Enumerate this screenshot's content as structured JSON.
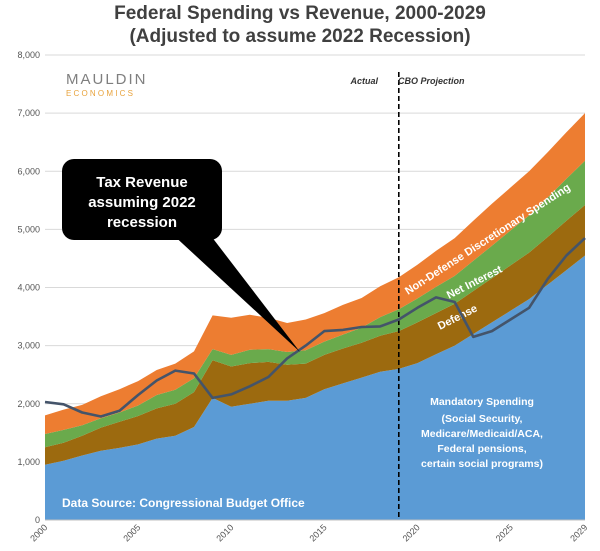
{
  "header": {
    "title": "Federal Spending vs Revenue, 2000-2029",
    "subtitle": "(Adjusted to assume 2022 Recession)"
  },
  "logo": {
    "line1": "MAULDIN",
    "line2": "ECONOMICS"
  },
  "labels": {
    "actual": "Actual",
    "projection": "CBO Projection",
    "source": "Data Source: Congressional Budget Office",
    "callout": [
      "Tax Revenue",
      "assuming 2022",
      "recession"
    ],
    "mandatory_title": "Mandatory Spending",
    "mandatory_detail": [
      "(Social Security,",
      "Medicare/Medicaid/ACA,",
      "Federal pensions,",
      "certain social programs)"
    ]
  },
  "colors": {
    "mandatory": "#5b9bd5",
    "defense": "#9c6a0f",
    "net_interest": "#6aaa4c",
    "non_defense": "#ed7d31",
    "revenue": "#44546a",
    "callout": "#000000"
  },
  "chart_data": {
    "type": "area",
    "title": "Federal Spending vs Revenue, 2000-2029",
    "subtitle": "(Adjusted to assume 2022 Recession)",
    "x": [
      2000,
      2001,
      2002,
      2003,
      2004,
      2005,
      2006,
      2007,
      2008,
      2009,
      2010,
      2011,
      2012,
      2013,
      2014,
      2015,
      2016,
      2017,
      2018,
      2019,
      2020,
      2021,
      2022,
      2023,
      2024,
      2025,
      2026,
      2027,
      2028,
      2029
    ],
    "xticks": [
      "2000",
      "2005",
      "2010",
      "2015",
      "2020",
      "2025",
      "2029"
    ],
    "xtick_values": [
      2000,
      2005,
      2010,
      2015,
      2020,
      2025,
      2029
    ],
    "ylim": [
      0,
      8000
    ],
    "yticks": [
      "0",
      "1,000",
      "2,000",
      "3,000",
      "4,000",
      "5,000",
      "6,000",
      "7,000",
      "8,000"
    ],
    "ytick_values": [
      0,
      1000,
      2000,
      3000,
      4000,
      5000,
      6000,
      7000,
      8000
    ],
    "grid": true,
    "divider_x": 2019,
    "stack_order": [
      "Mandatory Spending",
      "Defense",
      "Net Interest",
      "Non-Defense Discretionary Spending"
    ],
    "series": [
      {
        "name": "Mandatory Spending",
        "key": "mandatory",
        "values": [
          950,
          1020,
          1110,
          1190,
          1240,
          1300,
          1400,
          1450,
          1600,
          2100,
          1950,
          2000,
          2050,
          2050,
          2100,
          2250,
          2350,
          2450,
          2550,
          2600,
          2700,
          2850,
          3000,
          3200,
          3400,
          3600,
          3800,
          4050,
          4300,
          4550
        ]
      },
      {
        "name": "Defense",
        "key": "defense",
        "values": [
          300,
          310,
          340,
          400,
          450,
          490,
          520,
          550,
          600,
          650,
          690,
          700,
          670,
          620,
          590,
          590,
          600,
          600,
          620,
          650,
          700,
          710,
          720,
          740,
          760,
          780,
          800,
          820,
          850,
          870
        ]
      },
      {
        "name": "Net Interest",
        "key": "net_interest",
        "values": [
          230,
          220,
          180,
          160,
          160,
          180,
          230,
          240,
          240,
          190,
          200,
          230,
          220,
          220,
          230,
          230,
          240,
          260,
          320,
          375,
          410,
          450,
          480,
          520,
          560,
          600,
          640,
          680,
          720,
          760
        ]
      },
      {
        "name": "Non-Defense Discretionary Spending",
        "key": "non_defense",
        "values": [
          320,
          350,
          350,
          380,
          400,
          420,
          430,
          450,
          460,
          580,
          640,
          600,
          540,
          500,
          530,
          490,
          510,
          510,
          530,
          550,
          580,
          620,
          650,
          690,
          720,
          740,
          760,
          780,
          800,
          820
        ]
      },
      {
        "name": "Tax Revenue",
        "key": "revenue",
        "type": "line",
        "values": [
          2030,
          1990,
          1850,
          1780,
          1880,
          2150,
          2400,
          2570,
          2520,
          2100,
          2160,
          2300,
          2460,
          2780,
          3000,
          3250,
          3270,
          3320,
          3330,
          3450,
          3650,
          3830,
          3750,
          3150,
          3250,
          3450,
          3650,
          4150,
          4550,
          4850
        ]
      }
    ],
    "annotations": [
      "Actual",
      "CBO Projection",
      "Non-Defense Discretionary Spending",
      "Net Interest",
      "Defense"
    ]
  }
}
